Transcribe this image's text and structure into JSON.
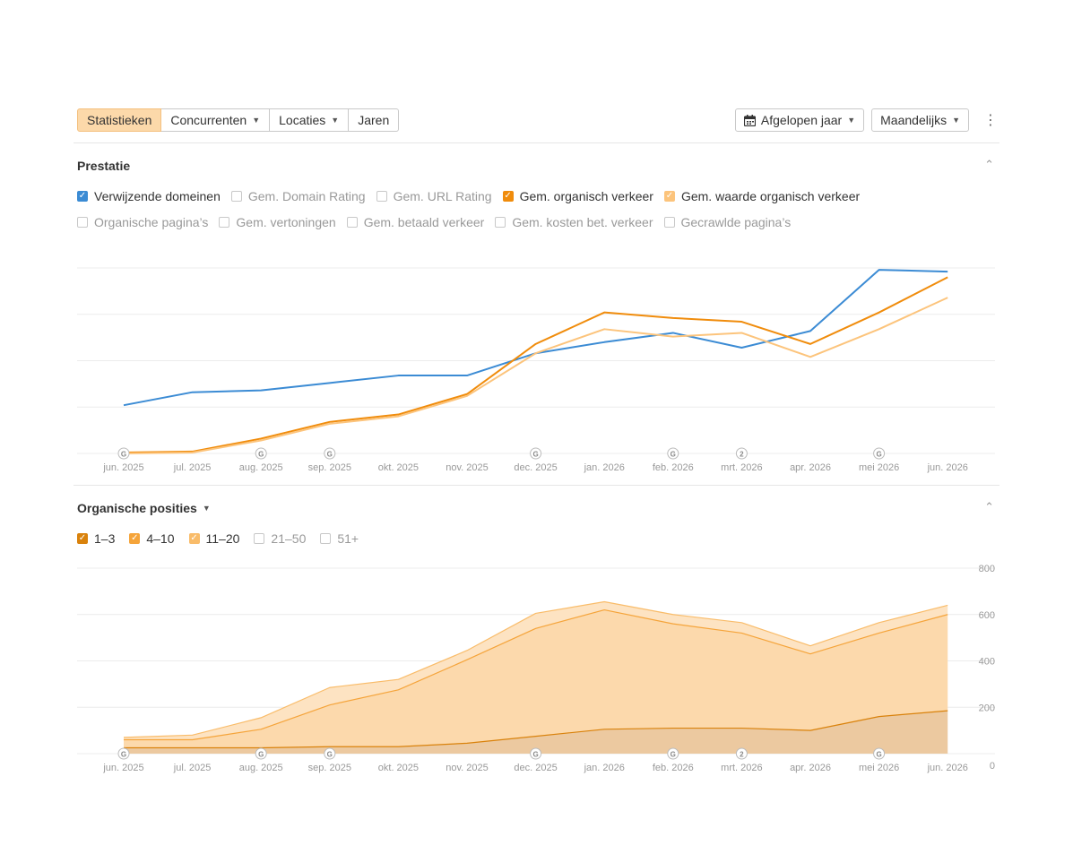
{
  "toolbar": {
    "tabs": [
      {
        "label": "Statistieken",
        "active": true,
        "dropdown": false
      },
      {
        "label": "Concurrenten",
        "active": false,
        "dropdown": true
      },
      {
        "label": "Locaties",
        "active": false,
        "dropdown": true
      },
      {
        "label": "Jaren",
        "active": false,
        "dropdown": false
      }
    ],
    "period_label": "Afgelopen jaar",
    "interval_label": "Maandelijks"
  },
  "performance": {
    "title": "Prestatie",
    "checkboxes": [
      {
        "label": "Verwijzende domeinen",
        "checked": true,
        "color": "#3b8bd4"
      },
      {
        "label": "Gem. Domain Rating",
        "checked": false,
        "color": ""
      },
      {
        "label": "Gem. URL Rating",
        "checked": false,
        "color": ""
      },
      {
        "label": "Gem. organisch verkeer",
        "checked": true,
        "color": "#f08c0c"
      },
      {
        "label": "Gem. waarde organisch verkeer",
        "checked": true,
        "color": "#fcc47c"
      },
      {
        "label": "Organische pagina’s",
        "checked": false,
        "color": ""
      },
      {
        "label": "Gem. vertoningen",
        "checked": false,
        "color": ""
      },
      {
        "label": "Gem. betaald verkeer",
        "checked": false,
        "color": ""
      },
      {
        "label": "Gem. kosten bet. verkeer",
        "checked": false,
        "color": ""
      },
      {
        "label": "Gecrawlde pagina’s",
        "checked": false,
        "color": ""
      }
    ]
  },
  "positions": {
    "title": "Organische posities",
    "checkboxes": [
      {
        "label": "1–3",
        "checked": true,
        "color": "#d9820c"
      },
      {
        "label": "4–10",
        "checked": true,
        "color": "#f5a43a"
      },
      {
        "label": "11–20",
        "checked": true,
        "color": "#f9bc6a"
      },
      {
        "label": "21–50",
        "checked": false,
        "color": ""
      },
      {
        "label": "51+",
        "checked": false,
        "color": ""
      }
    ]
  },
  "chart_data": [
    {
      "type": "line",
      "categories": [
        "jun. 2025",
        "jul. 2025",
        "aug. 2025",
        "sep. 2025",
        "okt. 2025",
        "nov. 2025",
        "dec. 2025",
        "jan. 2026",
        "feb. 2026",
        "mrt. 2026",
        "apr. 2026",
        "mei 2026",
        "jun. 2026"
      ],
      "markers": [
        {
          "index": 0,
          "label": "G"
        },
        {
          "index": 2,
          "label": "G"
        },
        {
          "index": 3,
          "label": "G"
        },
        {
          "index": 6,
          "label": "G"
        },
        {
          "index": 8,
          "label": "G"
        },
        {
          "index": 9,
          "label": "2"
        },
        {
          "index": 11,
          "label": "G"
        }
      ],
      "ylim": [
        0,
        100
      ],
      "grid": true,
      "series": [
        {
          "name": "Verwijzende domeinen",
          "color": "#3b8bd4",
          "values": [
            26,
            33,
            34,
            38,
            42,
            42,
            54,
            60,
            65,
            57,
            66,
            99,
            98
          ]
        },
        {
          "name": "Gem. organisch verkeer",
          "color": "#f08c0c",
          "values": [
            0.5,
            1,
            8,
            17,
            21,
            32,
            59,
            76,
            73,
            71,
            59,
            76,
            95
          ]
        },
        {
          "name": "Gem. waarde organisch verkeer",
          "color": "#fcc47c",
          "values": [
            0,
            0.5,
            7,
            16,
            20,
            31,
            54,
            67,
            63,
            65,
            52,
            67,
            84
          ]
        }
      ]
    },
    {
      "type": "area",
      "categories": [
        "jun. 2025",
        "jul. 2025",
        "aug. 2025",
        "sep. 2025",
        "okt. 2025",
        "nov. 2025",
        "dec. 2025",
        "jan. 2026",
        "feb. 2026",
        "mrt. 2026",
        "apr. 2026",
        "mei 2026",
        "jun. 2026"
      ],
      "markers": [
        {
          "index": 0,
          "label": "G"
        },
        {
          "index": 2,
          "label": "G"
        },
        {
          "index": 3,
          "label": "G"
        },
        {
          "index": 6,
          "label": "G"
        },
        {
          "index": 8,
          "label": "G"
        },
        {
          "index": 9,
          "label": "2"
        },
        {
          "index": 11,
          "label": "G"
        }
      ],
      "yticks": [
        "0",
        "200",
        "400",
        "600",
        "800"
      ],
      "ylim": [
        0,
        800
      ],
      "stacked": true,
      "series": [
        {
          "name": "1–3",
          "color": "#d9820c",
          "values": [
            25,
            25,
            25,
            30,
            30,
            45,
            75,
            105,
            110,
            110,
            100,
            160,
            185
          ]
        },
        {
          "name": "4–10",
          "color": "#f5a43a",
          "values": [
            35,
            35,
            80,
            180,
            245,
            360,
            465,
            515,
            450,
            410,
            330,
            360,
            415
          ]
        },
        {
          "name": "11–20",
          "color": "#f9bc6a",
          "values": [
            10,
            20,
            50,
            75,
            45,
            40,
            65,
            35,
            40,
            45,
            35,
            45,
            40
          ]
        }
      ]
    }
  ]
}
